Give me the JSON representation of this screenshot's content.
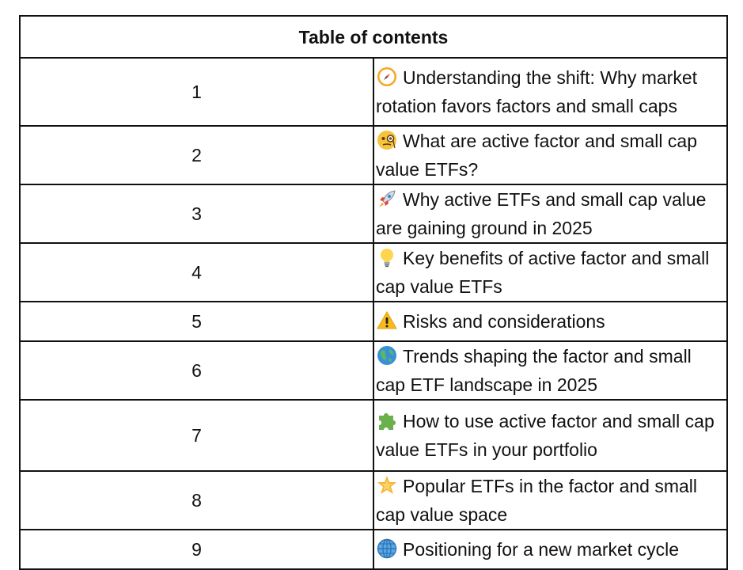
{
  "toc": {
    "title": "Table of contents",
    "rows": [
      {
        "num": "1",
        "icon": "compass-icon",
        "text": "Understanding the shift: Why market rotation favors factors and small caps"
      },
      {
        "num": "2",
        "icon": "monocle-face-icon",
        "text": "What are active factor and small cap value ETFs?"
      },
      {
        "num": "3",
        "icon": "rocket-icon",
        "text": "Why active ETFs and small cap value are gaining ground in 2025"
      },
      {
        "num": "4",
        "icon": "light-bulb-icon",
        "text": "Key benefits of active factor and small cap value ETFs"
      },
      {
        "num": "5",
        "icon": "warning-icon",
        "text": "Risks and considerations"
      },
      {
        "num": "6",
        "icon": "globe-icon",
        "text": "Trends shaping the factor and small cap ETF landscape in 2025"
      },
      {
        "num": "7",
        "icon": "puzzle-piece-icon",
        "text": "How to use active factor and small cap value ETFs in your portfolio"
      },
      {
        "num": "8",
        "icon": "star-icon",
        "text": "Popular ETFs in the factor and small cap value space"
      },
      {
        "num": "9",
        "icon": "globe-meridians-icon",
        "text": "Positioning for a new market cycle"
      }
    ]
  }
}
